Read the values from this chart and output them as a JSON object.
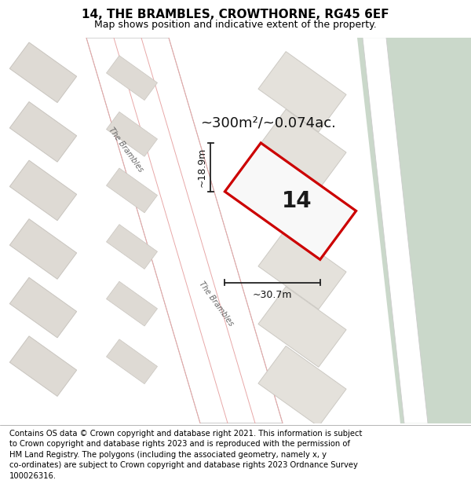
{
  "title": "14, THE BRAMBLES, CROWTHORNE, RG45 6EF",
  "subtitle": "Map shows position and indicative extent of the property.",
  "footer": "Contains OS data © Crown copyright and database right 2021. This information is subject\nto Crown copyright and database rights 2023 and is reproduced with the permission of\nHM Land Registry. The polygons (including the associated geometry, namely x, y\nco-ordinates) are subject to Crown copyright and database rights 2023 Ordnance Survey\n100026316.",
  "area_label": "~300m²/~0.074ac.",
  "width_label": "~30.7m",
  "height_label": "~18.9m",
  "number_label": "14",
  "bg_color": "#eeece8",
  "road_color": "#ffffff",
  "block_color": "#dedad4",
  "block_ec": "#c8c4be",
  "block2_color": "#e4e1db",
  "block2_ec": "#ccc9c3",
  "property_fill": "#f8f8f8",
  "property_outline": "#cc0000",
  "green_color": "#cad8ca",
  "road_line_color": "#e8a8a8",
  "dim_color": "#222222",
  "title_fontsize": 11,
  "subtitle_fontsize": 9,
  "footer_fontsize": 7.2,
  "label_fontsize": 13,
  "number_fontsize": 20,
  "dim_fontsize": 9
}
